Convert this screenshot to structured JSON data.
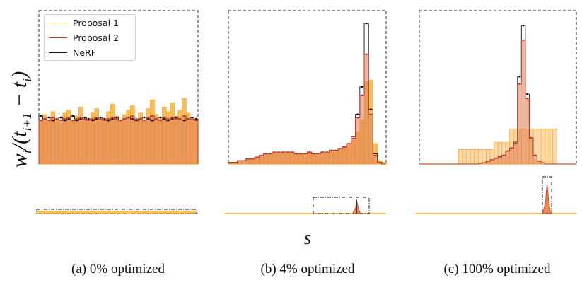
{
  "chart_data": [
    {
      "type": "histogram",
      "panel": "a",
      "caption": "(a) 0% optimized",
      "series": [
        {
          "name": "Proposal 1",
          "color": "#f5a623",
          "fill": "#f5b041",
          "values": [
            0.3,
            0.34,
            0.29,
            0.36,
            0.31,
            0.28,
            0.35,
            0.37,
            0.3,
            0.33,
            0.39,
            0.31,
            0.29,
            0.35,
            0.38,
            0.32,
            0.3,
            0.36,
            0.41,
            0.33,
            0.29,
            0.34,
            0.37,
            0.4,
            0.31,
            0.35,
            0.3,
            0.38,
            0.44,
            0.34,
            0.31,
            0.39,
            0.36,
            0.42,
            0.33,
            0.37,
            0.45,
            0.35,
            0.32,
            0.3
          ]
        },
        {
          "name": "Proposal 2",
          "color": "#c0392b",
          "values": [
            0.3,
            0.31,
            0.3,
            0.32,
            0.31,
            0.3,
            0.31,
            0.32,
            0.3,
            0.31,
            0.32,
            0.31,
            0.3,
            0.31,
            0.32,
            0.31,
            0.3,
            0.31,
            0.32,
            0.31,
            0.3,
            0.31,
            0.32,
            0.33,
            0.31,
            0.31,
            0.3,
            0.32,
            0.33,
            0.31,
            0.3,
            0.32,
            0.31,
            0.32,
            0.31,
            0.31,
            0.33,
            0.31,
            0.31,
            0.3
          ]
        },
        {
          "name": "NeRF",
          "color": "#111111",
          "values": [
            0.33,
            0.31,
            0.32,
            0.3,
            0.31,
            0.32,
            0.3,
            0.31,
            0.33,
            0.3,
            0.31,
            0.32,
            0.31,
            0.3,
            0.31,
            0.32,
            0.31,
            0.3,
            0.31,
            0.32,
            0.3,
            0.31,
            0.32,
            0.31,
            0.3,
            0.31,
            0.32,
            0.31,
            0.3,
            0.31,
            0.32,
            0.31,
            0.3,
            0.31,
            0.32,
            0.31,
            0.3,
            0.31,
            0.32,
            0.31
          ]
        }
      ]
    },
    {
      "type": "histogram",
      "panel": "b",
      "caption": "(b) 4% optimized",
      "series": [
        {
          "name": "Proposal 1",
          "color": "#f5a623",
          "fill": "#f5b041",
          "values": [
            0.01,
            0.01,
            0.02,
            0.02,
            0.03,
            0.03,
            0.04,
            0.05,
            0.06,
            0.06,
            0.07,
            0.07,
            0.07,
            0.07,
            0.07,
            0.06,
            0.06,
            0.06,
            0.07,
            0.06,
            0.06,
            0.07,
            0.07,
            0.08,
            0.08,
            0.09,
            0.1,
            0.12,
            0.14,
            0.19,
            0.26,
            0.48,
            0.49,
            0.12,
            0.02,
            0.01
          ]
        },
        {
          "name": "Proposal 2",
          "color": "#c0392b",
          "values": [
            0.01,
            0.01,
            0.02,
            0.02,
            0.03,
            0.03,
            0.04,
            0.05,
            0.06,
            0.06,
            0.07,
            0.07,
            0.07,
            0.07,
            0.07,
            0.06,
            0.06,
            0.06,
            0.07,
            0.06,
            0.06,
            0.07,
            0.07,
            0.08,
            0.08,
            0.09,
            0.1,
            0.12,
            0.15,
            0.27,
            0.4,
            0.64,
            0.29,
            0.05,
            0.01,
            0.0
          ]
        },
        {
          "name": "NeRF",
          "color": "#111111",
          "values": [
            0.01,
            0.01,
            0.02,
            0.02,
            0.03,
            0.03,
            0.04,
            0.05,
            0.06,
            0.06,
            0.07,
            0.07,
            0.07,
            0.07,
            0.07,
            0.06,
            0.06,
            0.06,
            0.07,
            0.06,
            0.06,
            0.07,
            0.07,
            0.08,
            0.08,
            0.09,
            0.1,
            0.12,
            0.16,
            0.29,
            0.45,
            0.82,
            0.32,
            0.06,
            0.01,
            0.0
          ]
        }
      ]
    },
    {
      "type": "histogram",
      "panel": "c",
      "caption": "(c) 100% optimized",
      "series": [
        {
          "name": "Proposal 1",
          "color": "#f5a623",
          "fill": "#fcd29a",
          "values": [
            0.0,
            0.0,
            0.0,
            0.0,
            0.0,
            0.0,
            0.0,
            0.0,
            0.0,
            0.0,
            0.1,
            0.1,
            0.1,
            0.1,
            0.1,
            0.1,
            0.1,
            0.1,
            0.1,
            0.15,
            0.15,
            0.15,
            0.15,
            0.24,
            0.24,
            0.24,
            0.24,
            0.24,
            0.24,
            0.24,
            0.24,
            0.24,
            0.24,
            0.24,
            0.24,
            0.0,
            0.0,
            0.0,
            0.0,
            0.0
          ]
        },
        {
          "name": "Proposal 2",
          "color": "#c0392b",
          "values": [
            0,
            0,
            0,
            0,
            0,
            0,
            0,
            0,
            0,
            0,
            0,
            0,
            0,
            0,
            0,
            0.005,
            0.01,
            0.02,
            0.03,
            0.04,
            0.05,
            0.06,
            0.09,
            0.11,
            0.14,
            0.55,
            0.85,
            0.45,
            0.18,
            0.06,
            0.02,
            0.01,
            0,
            0,
            0,
            0,
            0,
            0,
            0,
            0
          ]
        },
        {
          "name": "NeRF",
          "color": "#111111",
          "values": [
            0,
            0,
            0,
            0,
            0,
            0,
            0,
            0,
            0,
            0,
            0,
            0,
            0,
            0,
            0,
            0.005,
            0.01,
            0.02,
            0.03,
            0.04,
            0.05,
            0.06,
            0.09,
            0.11,
            0.15,
            0.6,
            0.95,
            0.48,
            0.18,
            0.06,
            0.02,
            0.01,
            0,
            0,
            0,
            0,
            0,
            0,
            0,
            0
          ]
        }
      ]
    }
  ],
  "axes": {
    "ylabel": "w_i/(t_{i+1} − t_i)",
    "xlabel": "s"
  },
  "legend": {
    "placement": "top-left",
    "items": [
      "Proposal 1",
      "Proposal 2",
      "NeRF"
    ]
  }
}
